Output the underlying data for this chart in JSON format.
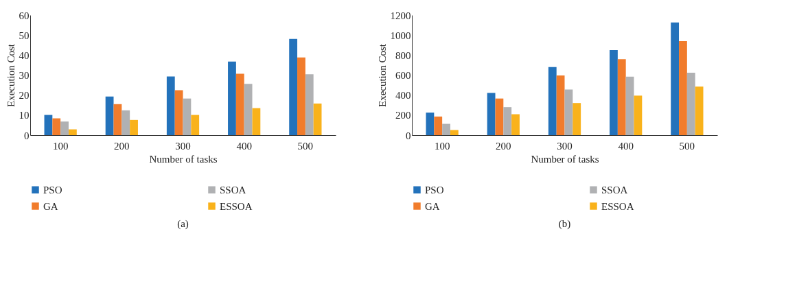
{
  "chart_data": [
    {
      "type": "bar",
      "xlabel": "Number of tasks",
      "ylabel": "Execution Cost",
      "categories": [
        "100",
        "200",
        "300",
        "400",
        "500"
      ],
      "ylim": [
        0,
        60
      ],
      "yticks": [
        0,
        10,
        20,
        30,
        40,
        50,
        60
      ],
      "grid": false,
      "legend": "bottom",
      "annotations": [
        "(a)"
      ],
      "series": [
        {
          "name": "PSO",
          "color": "#2372bb",
          "values": [
            10.1,
            19.3,
            29.3,
            36.8,
            48.1
          ]
        },
        {
          "name": "GA",
          "color": "#f17c2c",
          "values": [
            8.4,
            15.5,
            22.5,
            30.7,
            38.8
          ]
        },
        {
          "name": "SSOA",
          "color": "#b0b1b3",
          "values": [
            6.8,
            12.4,
            18.3,
            25.6,
            30.4
          ]
        },
        {
          "name": "ESSOA",
          "color": "#f9b21b",
          "values": [
            2.9,
            7.6,
            10.1,
            13.5,
            15.8
          ]
        }
      ]
    },
    {
      "type": "bar",
      "xlabel": "Number of tasks",
      "ylabel": "Execution Cost",
      "categories": [
        "100",
        "200",
        "300",
        "400",
        "500"
      ],
      "ylim": [
        0,
        1200
      ],
      "yticks": [
        0,
        200,
        400,
        600,
        800,
        1000,
        1200
      ],
      "grid": false,
      "legend": "bottom",
      "annotations": [
        "(b)"
      ],
      "series": [
        {
          "name": "PSO",
          "color": "#2372bb",
          "values": [
            225,
            422,
            680,
            850,
            1126
          ]
        },
        {
          "name": "GA",
          "color": "#f17c2c",
          "values": [
            186,
            366,
            596,
            759,
            940
          ]
        },
        {
          "name": "SSOA",
          "color": "#b0b1b3",
          "values": [
            113,
            280,
            456,
            585,
            624
          ]
        },
        {
          "name": "ESSOA",
          "color": "#f9b21b",
          "values": [
            51,
            209,
            321,
            395,
            485
          ]
        }
      ]
    }
  ]
}
